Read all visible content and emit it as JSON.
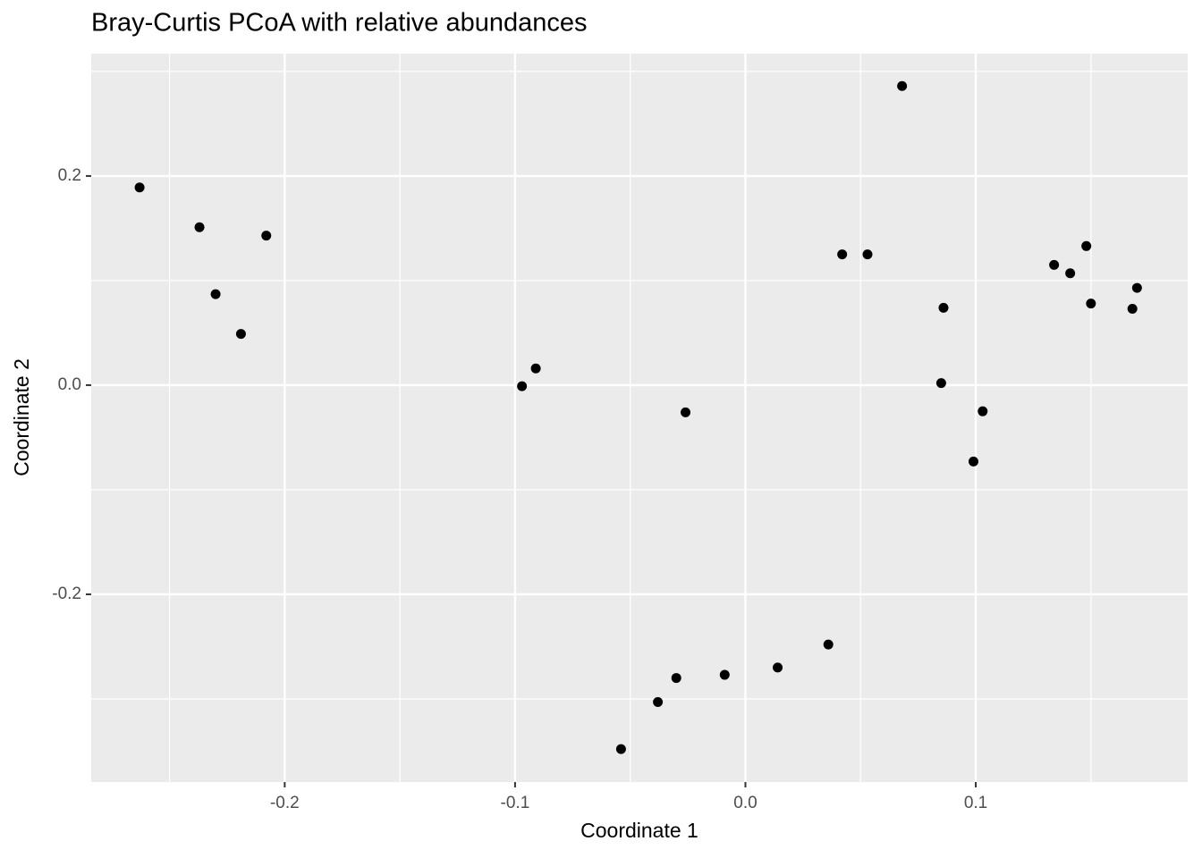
{
  "chart_data": {
    "type": "scatter",
    "title": "Bray-Curtis PCoA with relative abundances",
    "x_label": "Coordinate 1",
    "y_label": "Coordinate 2",
    "x": [
      -0.263,
      -0.237,
      -0.208,
      -0.23,
      -0.219,
      -0.097,
      -0.091,
      -0.026,
      0.068,
      0.042,
      0.053,
      0.086,
      0.085,
      0.103,
      0.099,
      0.134,
      0.141,
      0.148,
      0.15,
      0.17,
      0.168,
      -0.054,
      -0.038,
      -0.03,
      -0.009,
      0.014,
      0.036
    ],
    "series": [
      {
        "color": "#000000",
        "values": [
          0.189,
          0.151,
          0.143,
          0.087,
          0.049,
          -0.001,
          0.016,
          -0.026,
          0.286,
          0.125,
          0.125,
          0.074,
          0.002,
          -0.025,
          -0.073,
          0.115,
          0.107,
          0.133,
          0.078,
          0.093,
          0.073,
          -0.348,
          -0.303,
          -0.28,
          -0.277,
          -0.27,
          -0.248
        ]
      }
    ],
    "xlim": [
      -0.284,
      0.192
    ],
    "ylim": [
      -0.3795,
      0.317
    ],
    "xticks": [
      -0.2,
      -0.1,
      {
        "value": 0,
        "label": "0.0"
      },
      0.1
    ],
    "yticks": [
      -0.2,
      {
        "value": 0,
        "label": "0.0"
      },
      0.2
    ],
    "x_minor_grid": [
      -0.25,
      -0.15,
      -0.05,
      0.05,
      0.15
    ],
    "y_minor_grid": [
      -0.3,
      -0.1,
      0.1,
      0.3
    ],
    "grid": true
  }
}
